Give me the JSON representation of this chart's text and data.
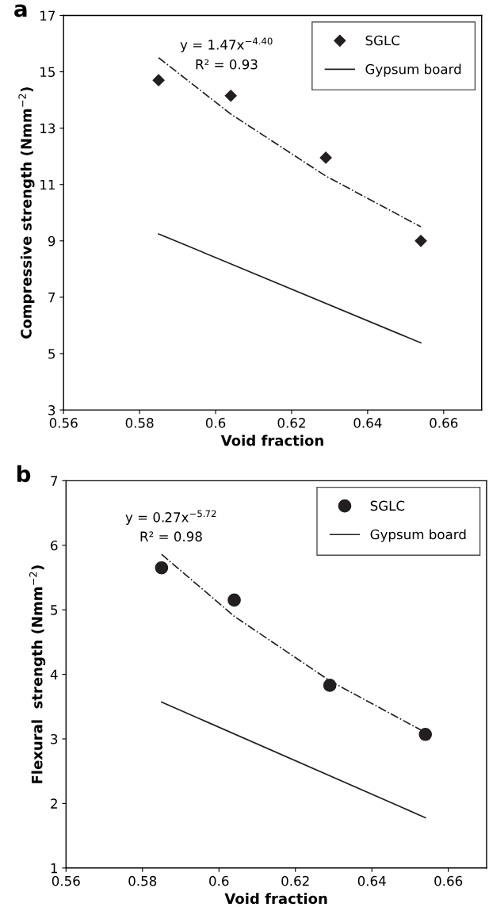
{
  "chart_data": [
    {
      "type": "scatter",
      "title": "a",
      "xlabel": "Void fraction",
      "ylabel": "Compressive strength (Nmm$^{−2}$)",
      "xlim": [
        0.56,
        0.67
      ],
      "xticks": [
        0.56,
        0.58,
        {
          "value": 0.6,
          "label": "0.6"
        },
        0.62,
        0.64,
        0.66
      ],
      "ylim": [
        3,
        17
      ],
      "yticks": [
        3,
        5,
        7,
        9,
        11,
        13,
        15,
        17
      ],
      "grid": false,
      "legend": "top right",
      "annotations": [
        "y = 1.47x$^{−4.40}$",
        "R² = 0.93"
      ],
      "series": [
        {
          "name": "SGLC",
          "marker": "diamond",
          "color": "#231f20",
          "x": [
            0.585,
            0.604,
            0.629,
            0.654
          ],
          "values": [
            14.7,
            14.15,
            11.95,
            9.0
          ]
        },
        {
          "name": "Gypsum board",
          "type": "line",
          "color": "#231f20",
          "line_style": "solid",
          "x": [
            0.585,
            0.654
          ],
          "values": [
            9.25,
            5.38
          ]
        },
        {
          "type": "line",
          "color": "#231f20",
          "line_style": "dashed",
          "x": [
            0.585,
            0.604,
            0.629,
            0.654
          ],
          "values": [
            15.5,
            13.5,
            11.3,
            9.5
          ]
        }
      ]
    },
    {
      "type": "scatter",
      "title": "b",
      "xlabel": "Void fraction",
      "ylabel": "Flexural  strength (Nmm$^{−2}$)",
      "xlim": [
        0.56,
        0.67
      ],
      "xticks": [
        0.56,
        0.58,
        {
          "value": 0.6,
          "label": "0.6"
        },
        0.62,
        0.64,
        0.66
      ],
      "ylim": [
        1,
        7
      ],
      "yticks": [
        1,
        2,
        3,
        4,
        5,
        6,
        7
      ],
      "grid": false,
      "legend": "top right",
      "annotations": [
        "y = 0.27x$^{−5.72}$",
        "R² = 0.98"
      ],
      "series": [
        {
          "name": "SGLC",
          "marker": "circle",
          "color": "#231f20",
          "x": [
            0.585,
            0.604,
            0.629,
            0.654
          ],
          "values": [
            5.65,
            5.15,
            3.83,
            3.07
          ]
        },
        {
          "name": "Gypsum board",
          "type": "line",
          "color": "#231f20",
          "line_style": "solid",
          "x": [
            0.585,
            0.654
          ],
          "values": [
            3.57,
            1.78
          ]
        },
        {
          "type": "line",
          "color": "#231f20",
          "line_style": "dashed",
          "x": [
            0.585,
            0.604,
            0.629,
            0.654
          ],
          "values": [
            5.86,
            4.9,
            3.9,
            3.1
          ]
        }
      ]
    }
  ]
}
